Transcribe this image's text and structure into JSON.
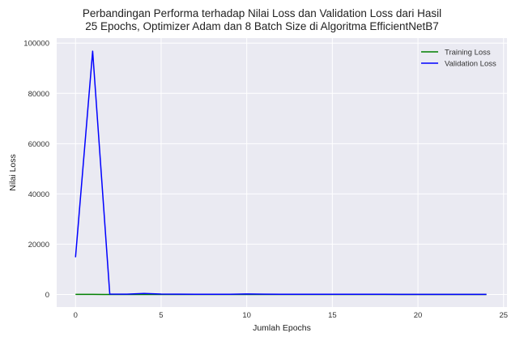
{
  "title_line1": "Perbandingan Performa terhadap Nilai Loss dan Validation Loss dari Hasil",
  "title_line2": "25 Epochs, Optimizer Adam dan 8 Batch Size di Algoritma EfficientNetB7",
  "chart_data": {
    "type": "line",
    "title": "Perbandingan Performa terhadap Nilai Loss dan Validation Loss dari Hasil 25 Epochs, Optimizer Adam dan 8 Batch Size di Algoritma EfficientNetB7",
    "xlabel": "Jumlah Epochs",
    "ylabel": "Nilai Loss",
    "x": [
      0,
      1,
      2,
      3,
      4,
      5,
      6,
      7,
      8,
      9,
      10,
      11,
      12,
      13,
      14,
      15,
      16,
      17,
      18,
      19,
      20,
      21,
      22,
      23,
      24
    ],
    "xlim": [
      -1.1,
      25.2
    ],
    "ylim": [
      -5000,
      102000
    ],
    "xticks": [
      0,
      5,
      10,
      15,
      20,
      25
    ],
    "yticks": [
      0,
      20000,
      40000,
      60000,
      80000,
      100000
    ],
    "grid": true,
    "legend_position": "top-right",
    "series": [
      {
        "name": "Training Loss",
        "color": "#008000",
        "values": [
          50,
          20,
          10,
          8,
          6,
          5,
          5,
          4,
          4,
          4,
          3,
          3,
          3,
          3,
          3,
          3,
          3,
          3,
          3,
          3,
          3,
          3,
          3,
          3,
          3
        ]
      },
      {
        "name": "Validation Loss",
        "color": "#0000ff",
        "values": [
          14800,
          96800,
          150,
          120,
          400,
          150,
          100,
          90,
          80,
          90,
          200,
          100,
          90,
          80,
          70,
          70,
          60,
          60,
          60,
          50,
          50,
          50,
          50,
          50,
          50
        ]
      }
    ]
  }
}
